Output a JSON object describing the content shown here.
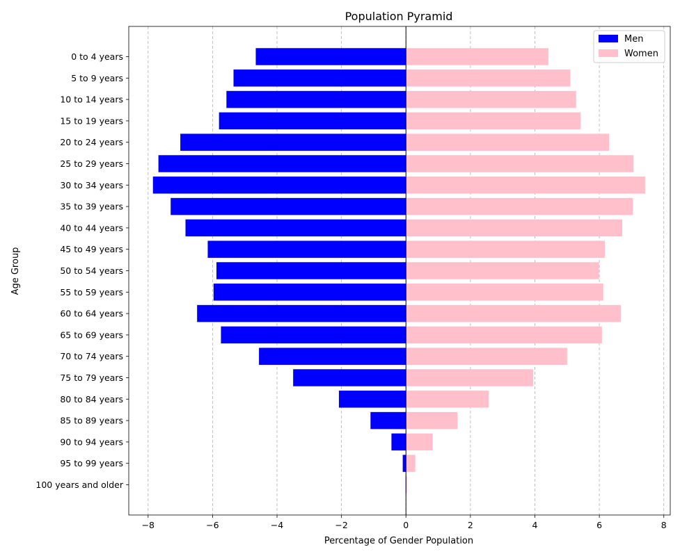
{
  "chart_data": {
    "type": "bar",
    "orientation": "horizontal",
    "title": "Population Pyramid",
    "xlabel": "Percentage of Gender Population",
    "ylabel": "Age Group",
    "xlim": [
      -8.6,
      8.2
    ],
    "xticks": [
      -8,
      -6,
      -4,
      -2,
      0,
      2,
      4,
      6,
      8
    ],
    "xtick_labels": [
      "−8",
      "−6",
      "−4",
      "−2",
      "0",
      "2",
      "4",
      "6",
      "8"
    ],
    "grid": "x-dashed",
    "legend_position": "top-right",
    "categories": [
      "0 to 4 years",
      "5 to 9 years",
      "10 to 14 years",
      "15 to 19 years",
      "20 to 24 years",
      "25 to 29 years",
      "30 to 34 years",
      "35 to 39 years",
      "40 to 44 years",
      "45 to 49 years",
      "50 to 54 years",
      "55 to 59 years",
      "60 to 64 years",
      "65 to 69 years",
      "70 to 74 years",
      "75 to 79 years",
      "80 to 84 years",
      "85 to 89 years",
      "90 to 94 years",
      "95 to 99 years",
      "100 years and older"
    ],
    "series": [
      {
        "name": "Men",
        "color": "#0000ff",
        "values": [
          -4.66,
          -5.35,
          -5.57,
          -5.8,
          -7.0,
          -7.68,
          -7.85,
          -7.3,
          -6.84,
          -6.15,
          -5.88,
          -5.97,
          -6.48,
          -5.74,
          -4.56,
          -3.5,
          -2.08,
          -1.1,
          -0.45,
          -0.1,
          -0.01
        ]
      },
      {
        "name": "Women",
        "color": "#ffc0cb",
        "values": [
          4.42,
          5.1,
          5.28,
          5.42,
          6.3,
          7.06,
          7.42,
          7.04,
          6.71,
          6.17,
          5.99,
          6.12,
          6.67,
          6.08,
          5.0,
          3.95,
          2.57,
          1.6,
          0.83,
          0.29,
          0.03
        ]
      }
    ]
  }
}
